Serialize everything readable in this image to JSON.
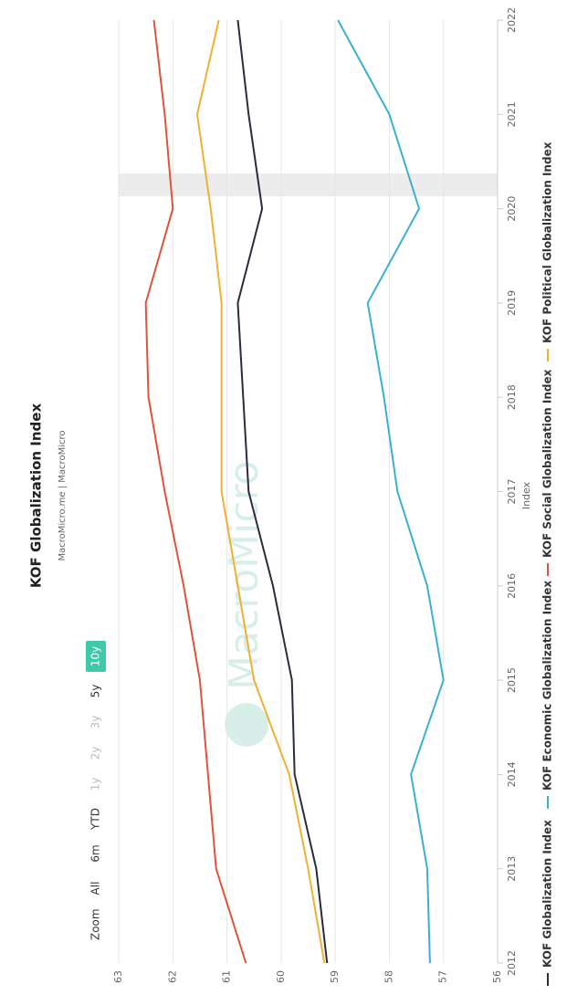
{
  "chart_data": {
    "type": "line",
    "title": "KOF Globalization Index",
    "subtitle": "MacroMicro.me | MacroMicro",
    "watermark": "MacroMicro",
    "y_label": "Index",
    "zoom_label": "Zoom",
    "zoom_buttons": [
      "All",
      "6m",
      "YTD",
      "1y",
      "2y",
      "3y",
      "5y",
      "10y"
    ],
    "zoom_active": "10y",
    "x": [
      2012,
      2013,
      2014,
      2015,
      2016,
      2017,
      2018,
      2019,
      2020,
      2021,
      2022
    ],
    "xlim": [
      2012,
      2022
    ],
    "xticks": [
      2012,
      2013,
      2014,
      2015,
      2016,
      2017,
      2018,
      2019,
      2020,
      2021,
      2022
    ],
    "ylim": [
      56,
      63
    ],
    "yticks": [
      56,
      57,
      58,
      59,
      60,
      61,
      62,
      63
    ],
    "grid": true,
    "series": [
      {
        "name": "KOF Globalization Index",
        "color": "#2b2b3b",
        "values": [
          59.15,
          59.35,
          59.75,
          59.8,
          60.15,
          60.6,
          60.7,
          60.8,
          60.35,
          60.6,
          60.8
        ]
      },
      {
        "name": "KOF Economic Globalization Index",
        "color": "#3ab0d4",
        "values": [
          57.25,
          57.3,
          57.6,
          57.0,
          57.3,
          57.85,
          58.1,
          58.4,
          57.45,
          58.0,
          58.95
        ]
      },
      {
        "name": "KOF Social Globalization Index",
        "color": "#e0533b",
        "values": [
          60.65,
          61.2,
          61.35,
          61.5,
          61.8,
          62.15,
          62.45,
          62.5,
          62.0,
          62.15,
          62.35
        ]
      },
      {
        "name": "KOF Political Globalization Index",
        "color": "#f0b030",
        "values": [
          59.2,
          59.5,
          59.85,
          60.5,
          60.8,
          61.1,
          61.1,
          61.1,
          61.3,
          61.55,
          61.15
        ]
      }
    ]
  }
}
